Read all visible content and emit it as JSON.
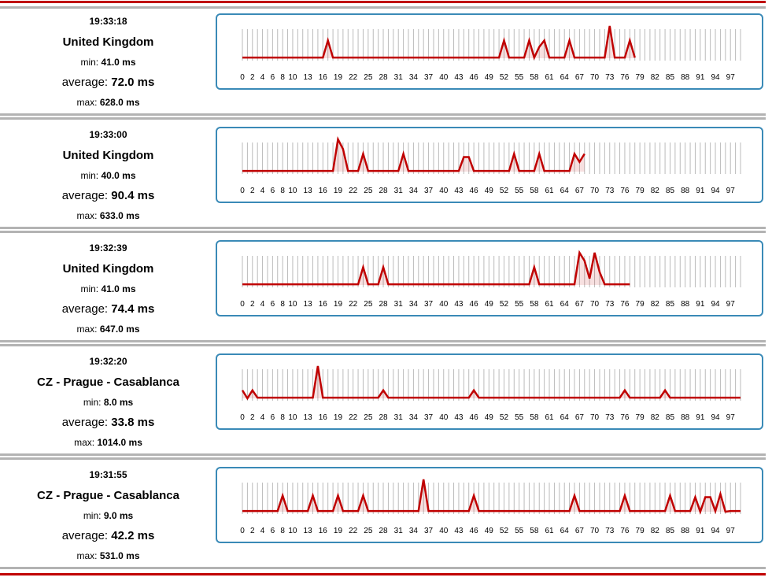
{
  "colors": {
    "line": "#c00000",
    "border": "#3a8ab7",
    "tick": "#bbbbbb",
    "separator": "#b3b3b3"
  },
  "labels": {
    "min": "min:",
    "average": "average:",
    "max": "max:"
  },
  "x_axis_labels": [
    "0",
    "2",
    "4",
    "6",
    "8",
    "10",
    "13",
    "16",
    "19",
    "22",
    "25",
    "28",
    "31",
    "34",
    "37",
    "40",
    "43",
    "46",
    "49",
    "52",
    "55",
    "58",
    "61",
    "64",
    "67",
    "70",
    "73",
    "76",
    "79",
    "82",
    "85",
    "88",
    "91",
    "94",
    "97"
  ],
  "entries": [
    {
      "time": "19:33:18",
      "location": "United Kingdom",
      "min": "41.0 ms",
      "average": "72.0 ms",
      "max": "628.0 ms"
    },
    {
      "time": "19:33:00",
      "location": "United Kingdom",
      "min": "40.0 ms",
      "average": "90.4 ms",
      "max": "633.0 ms"
    },
    {
      "time": "19:32:39",
      "location": "United Kingdom",
      "min": "41.0 ms",
      "average": "74.4 ms",
      "max": "647.0 ms"
    },
    {
      "time": "19:32:20",
      "location": "CZ - Prague - Casablanca",
      "min": "8.0 ms",
      "average": "33.8 ms",
      "max": "1014.0 ms"
    },
    {
      "time": "19:31:55",
      "location": "CZ - Prague - Casablanca",
      "min": "9.0 ms",
      "average": "42.2 ms",
      "max": "531.0 ms"
    }
  ],
  "chart_data": [
    {
      "type": "line",
      "x_range": [
        0,
        99
      ],
      "count": 79,
      "spikes": [
        [
          17,
          0.55
        ],
        [
          52,
          0.55
        ],
        [
          57,
          0.55
        ],
        [
          59,
          0.35
        ],
        [
          60,
          0.55
        ],
        [
          65,
          0.55
        ],
        [
          73,
          1.0
        ],
        [
          77,
          0.55
        ]
      ]
    },
    {
      "type": "line",
      "x_range": [
        0,
        99
      ],
      "count": 69,
      "spikes": [
        [
          19,
          1.0
        ],
        [
          20,
          0.7
        ],
        [
          24,
          0.55
        ],
        [
          32,
          0.55
        ],
        [
          44,
          0.45
        ],
        [
          45,
          0.45
        ],
        [
          54,
          0.55
        ],
        [
          59,
          0.55
        ],
        [
          66,
          0.55
        ],
        [
          67,
          0.3
        ],
        [
          68,
          0.55
        ]
      ]
    },
    {
      "type": "line",
      "x_range": [
        0,
        99
      ],
      "count": 78,
      "spikes": [
        [
          24,
          0.55
        ],
        [
          28,
          0.55
        ],
        [
          58,
          0.55
        ],
        [
          67,
          1.0
        ],
        [
          68,
          0.75
        ],
        [
          69,
          0.2
        ],
        [
          70,
          1.0
        ],
        [
          71,
          0.4
        ]
      ]
    },
    {
      "type": "line",
      "x_range": [
        0,
        99
      ],
      "count": 100,
      "spikes": [
        [
          0,
          0.25
        ],
        [
          1,
          0.0
        ],
        [
          2,
          0.25
        ],
        [
          15,
          1.0
        ],
        [
          28,
          0.25
        ],
        [
          46,
          0.25
        ],
        [
          76,
          0.25
        ],
        [
          84,
          0.25
        ]
      ]
    },
    {
      "type": "line",
      "x_range": [
        0,
        99
      ],
      "count": 100,
      "spikes": [
        [
          8,
          0.5
        ],
        [
          14,
          0.5
        ],
        [
          19,
          0.5
        ],
        [
          24,
          0.5
        ],
        [
          36,
          1.0
        ],
        [
          46,
          0.5
        ],
        [
          66,
          0.5
        ],
        [
          76,
          0.5
        ],
        [
          85,
          0.5
        ],
        [
          90,
          0.45
        ],
        [
          91,
          0.0
        ],
        [
          92,
          0.45
        ],
        [
          93,
          0.45
        ],
        [
          95,
          0.55
        ],
        [
          96,
          0.0
        ]
      ]
    }
  ]
}
